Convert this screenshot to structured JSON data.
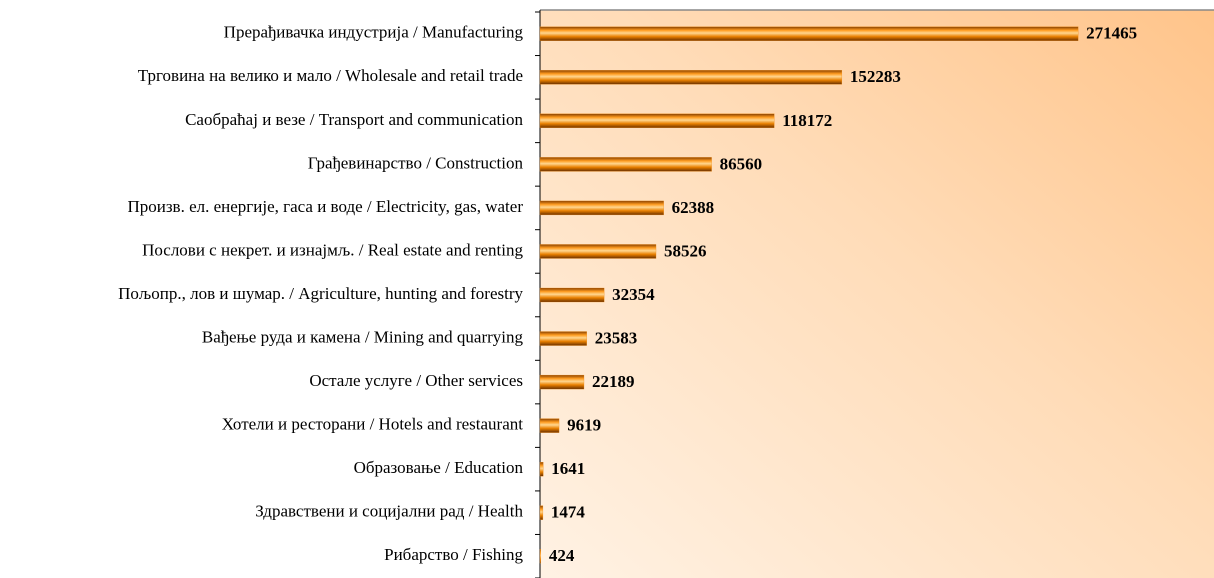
{
  "chart_data": {
    "type": "barh",
    "categories": [
      "Прерађивачка индустрија / Manufacturing",
      "Трговина на велико и мало / Wholesale and retail trade",
      "Саобраћај  и везе / Transport and communication",
      "Грађевинарство / Construction",
      "Произв. ел. енергије, гаса и воде / Electricity, gas, water",
      "Послови с некрет. и изнајмљ. / Real estate and renting",
      "Пољопр., лов и шумар. / Agriculture, hunting and forestry",
      "Вађење руда и камена / Mining and quarrying",
      "Остале услуге / Other services",
      "Хотели и ресторани / Hotels and restaurant",
      "Образовање / Education",
      "Здравствени и социјални рад / Health",
      "Рибарство / Fishing"
    ],
    "values": [
      271465,
      152283,
      118172,
      86560,
      62388,
      58526,
      32354,
      23583,
      22189,
      9619,
      1641,
      1474,
      424
    ],
    "color": "#f08a10",
    "xlim": [
      0,
      340000
    ]
  }
}
